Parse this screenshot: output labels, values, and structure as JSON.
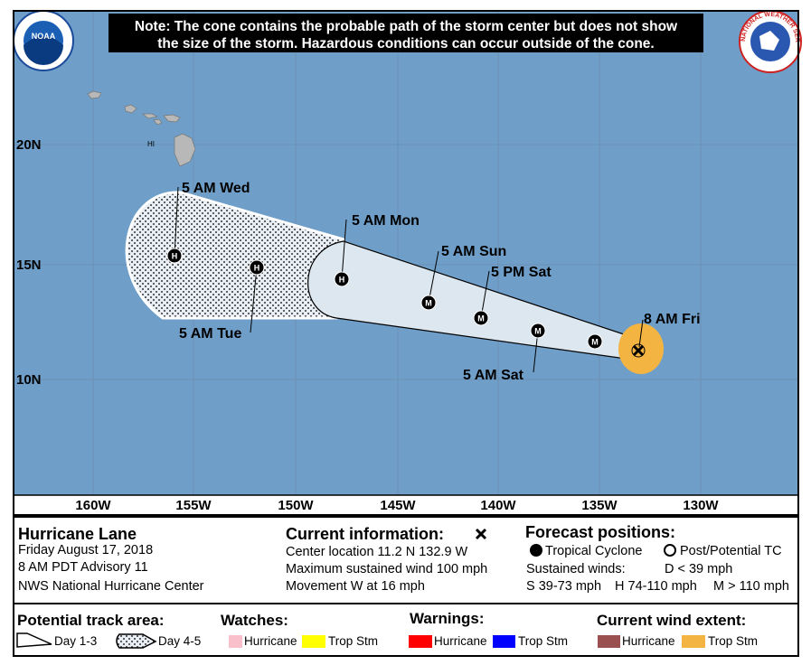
{
  "note": [
    "Note: The cone contains the probable path of the storm center but does not show",
    "the size of the storm. Hazardous conditions can occur outside of the cone."
  ],
  "logos": {
    "left": "NOAA",
    "right": "NATIONAL WEATHER SERVICE"
  },
  "map": {
    "latitudes": [
      "20N",
      "15N",
      "10N"
    ],
    "longitudes": [
      "160W",
      "155W",
      "150W",
      "145W",
      "140W",
      "135W",
      "130W"
    ],
    "island_label": "HI",
    "forecast_points": [
      {
        "symbol": "H",
        "label": "5 AM Wed"
      },
      {
        "symbol": "H",
        "label": "5 AM Tue"
      },
      {
        "symbol": "H",
        "label": "5 AM Mon"
      },
      {
        "symbol": "M",
        "label": "5 AM Sun"
      },
      {
        "symbol": "M",
        "label": "5 PM Sat"
      },
      {
        "symbol": "M",
        "label": "5 AM Sat"
      },
      {
        "symbol": "M"
      }
    ],
    "current_label": "8 AM Fri"
  },
  "storm": {
    "name": "Hurricane Lane",
    "date": "Friday August 17, 2018",
    "advisory": "8 AM PDT Advisory 11",
    "source": "NWS National Hurricane Center"
  },
  "current": {
    "title": "Current information:",
    "lines": [
      "Center location 11.2 N 132.9 W",
      "Maximum sustained wind 100 mph",
      "Movement W at 16 mph"
    ]
  },
  "forecast": {
    "title": "Forecast positions:",
    "tropical": "Tropical Cyclone",
    "post": "Post/Potential TC",
    "sustained": "Sustained winds:",
    "d": "D < 39 mph",
    "s": "S 39-73 mph",
    "h": "H 74-110 mph",
    "m": "M > 110 mph"
  },
  "legend": {
    "track": {
      "title": "Potential track area:",
      "day13": "Day 1-3",
      "day45": "Day 4-5"
    },
    "watches": {
      "title": "Watches:",
      "hurricane": "Hurricane",
      "tropstorm": "Trop Stm"
    },
    "warnings": {
      "title": "Warnings:",
      "hurricane": "Hurricane",
      "tropstorm": "Trop Stm"
    },
    "wind": {
      "title": "Current wind extent:",
      "hurricane": "Hurricane",
      "tropstorm": "Trop Stm"
    }
  }
}
